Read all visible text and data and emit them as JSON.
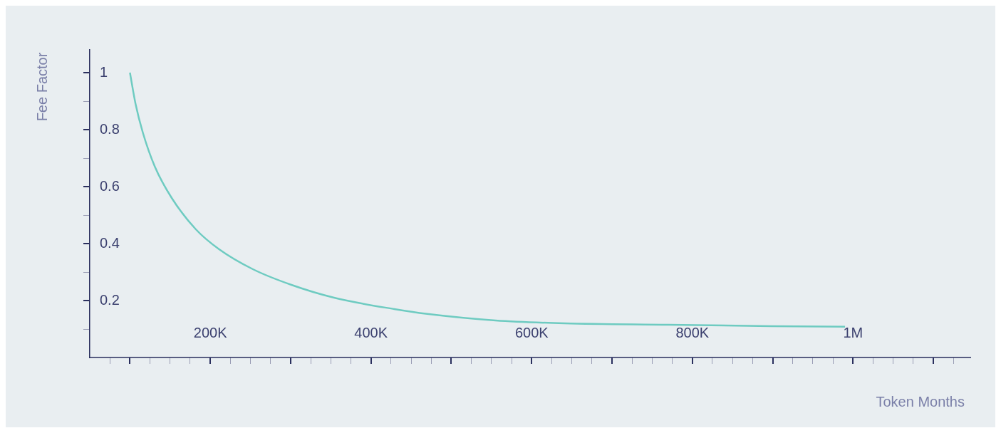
{
  "chart_data": {
    "type": "line",
    "xlabel": "Token Months",
    "ylabel": "Fee Factor",
    "x": [
      100000,
      107000,
      116000,
      131000,
      152000,
      182000,
      211000,
      253000,
      301000,
      354000,
      429000,
      470000,
      555000,
      641000,
      770000,
      898000,
      990000
    ],
    "series": [
      {
        "color": "#6ecbc1",
        "values": [
          1.0,
          0.89,
          0.79,
          0.67,
          0.56,
          0.45,
          0.38,
          0.31,
          0.255,
          0.21,
          0.17,
          0.153,
          0.13,
          0.12,
          0.115,
          0.11,
          0.108
        ]
      }
    ],
    "xlim": [
      50000,
      1146000
    ],
    "ylim": [
      0,
      1.08
    ],
    "xticks": [
      {
        "value": 75000,
        "label": null
      },
      {
        "value": 100000,
        "label": null
      },
      {
        "value": 125000,
        "label": null
      },
      {
        "value": 150000,
        "label": null
      },
      {
        "value": 175000,
        "label": null
      },
      {
        "value": 200000,
        "label": "200K"
      },
      {
        "value": 225000,
        "label": null
      },
      {
        "value": 250000,
        "label": null
      },
      {
        "value": 275000,
        "label": null
      },
      {
        "value": 300000,
        "label": null
      },
      {
        "value": 325000,
        "label": null
      },
      {
        "value": 350000,
        "label": null
      },
      {
        "value": 375000,
        "label": null
      },
      {
        "value": 400000,
        "label": "400K"
      },
      {
        "value": 425000,
        "label": null
      },
      {
        "value": 450000,
        "label": null
      },
      {
        "value": 475000,
        "label": null
      },
      {
        "value": 500000,
        "label": null
      },
      {
        "value": 525000,
        "label": null
      },
      {
        "value": 550000,
        "label": null
      },
      {
        "value": 575000,
        "label": null
      },
      {
        "value": 600000,
        "label": "600K"
      },
      {
        "value": 625000,
        "label": null
      },
      {
        "value": 650000,
        "label": null
      },
      {
        "value": 675000,
        "label": null
      },
      {
        "value": 700000,
        "label": null
      },
      {
        "value": 725000,
        "label": null
      },
      {
        "value": 750000,
        "label": null
      },
      {
        "value": 775000,
        "label": null
      },
      {
        "value": 800000,
        "label": "800K"
      },
      {
        "value": 825000,
        "label": null
      },
      {
        "value": 850000,
        "label": null
      },
      {
        "value": 875000,
        "label": null
      },
      {
        "value": 900000,
        "label": null
      },
      {
        "value": 925000,
        "label": null
      },
      {
        "value": 950000,
        "label": null
      },
      {
        "value": 975000,
        "label": null
      },
      {
        "value": 1000000,
        "label": "1M"
      },
      {
        "value": 1025000,
        "label": null
      },
      {
        "value": 1050000,
        "label": null
      },
      {
        "value": 1075000,
        "label": null
      },
      {
        "value": 1100000,
        "label": null
      },
      {
        "value": 1125000,
        "label": null
      }
    ],
    "yticks": [
      {
        "value": 0.1,
        "label": null
      },
      0.2,
      {
        "value": 0.3,
        "label": null
      },
      0.4,
      {
        "value": 0.5,
        "label": null
      },
      0.6,
      {
        "value": 0.7,
        "label": null
      },
      0.8,
      {
        "value": 0.9,
        "label": null
      },
      1
    ],
    "legend": false,
    "marker": "none",
    "line_style": "solid"
  }
}
